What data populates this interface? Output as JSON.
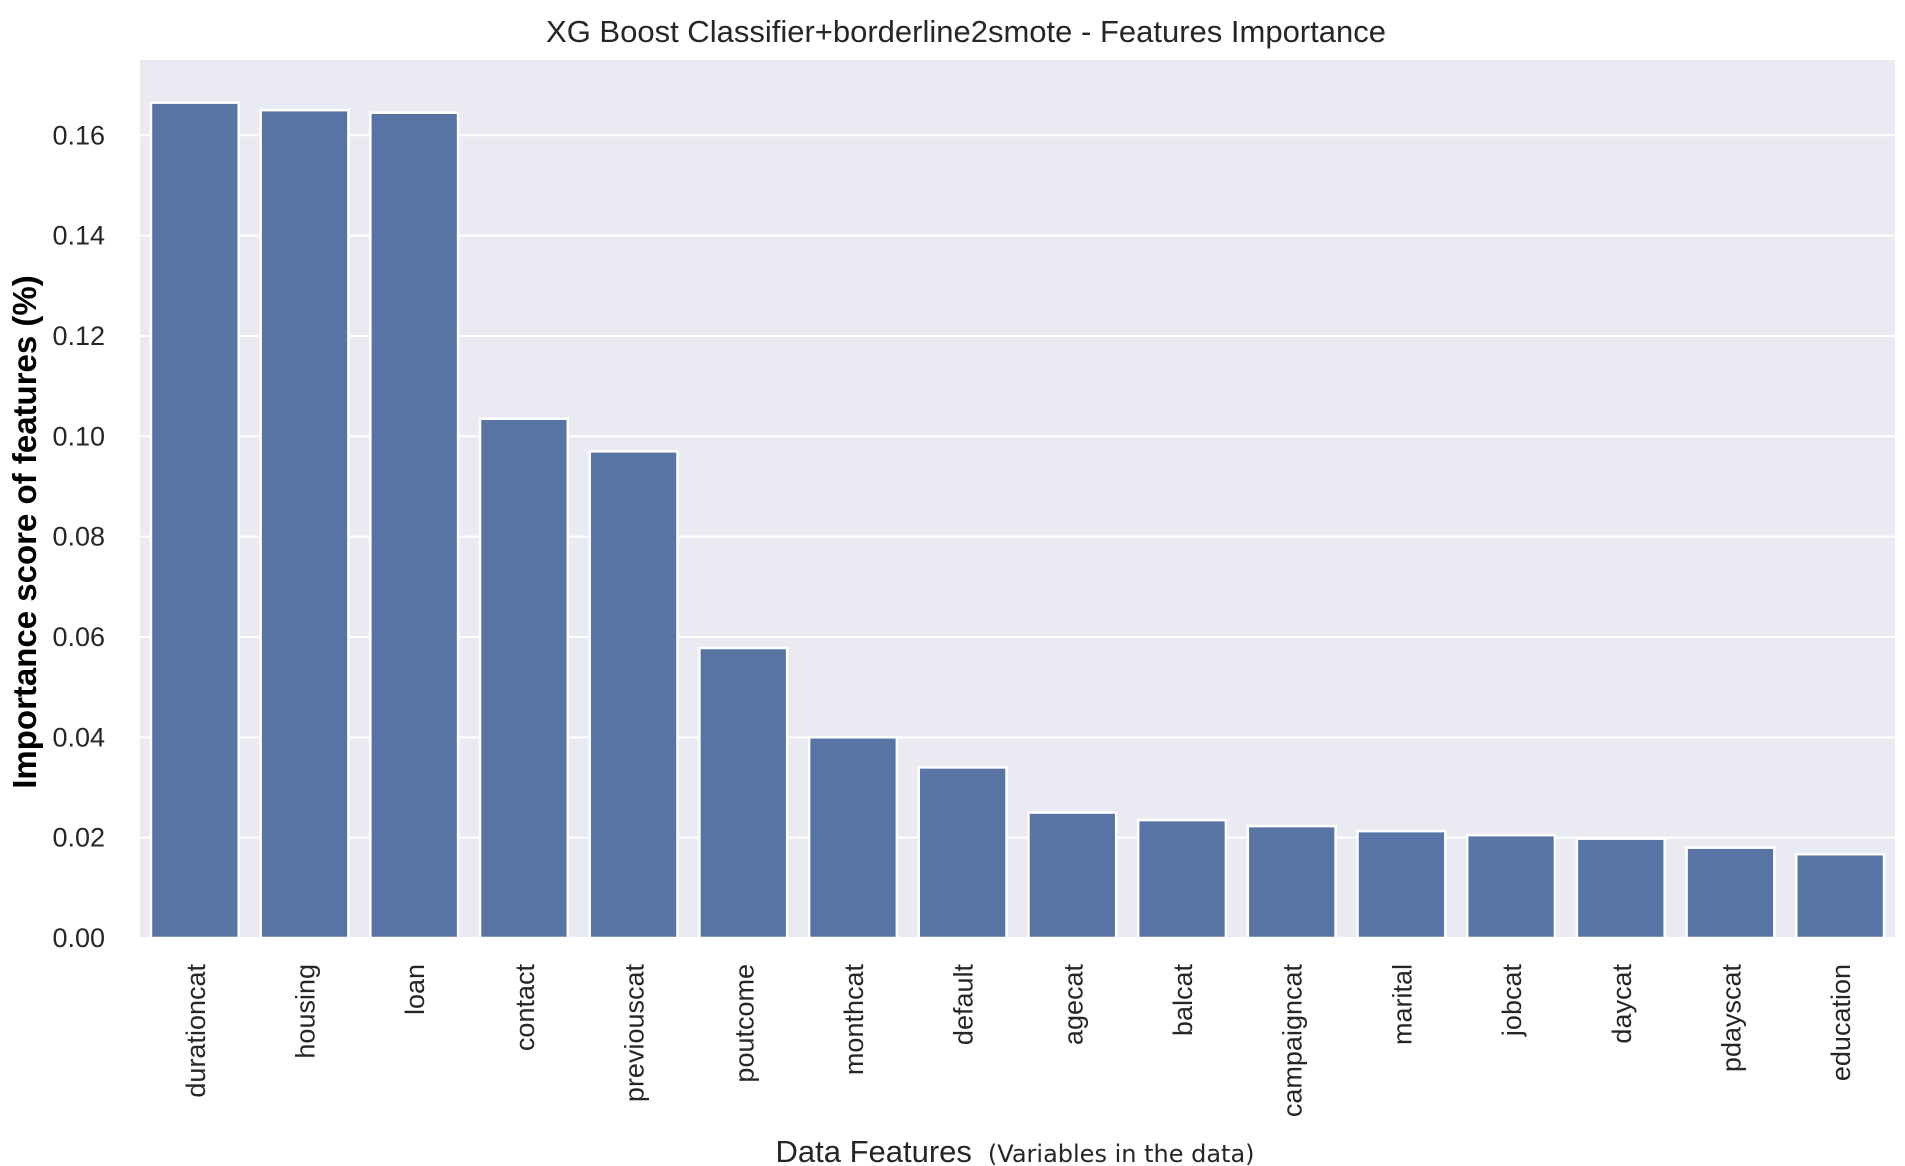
{
  "chart_data": {
    "type": "bar",
    "title": "XG Boost Classifier+borderline2smote - Features Importance",
    "xlabel": "Data Features",
    "xlabel_note": "(Variables in the data)",
    "ylabel": "Importance score of features (%)",
    "ylim": [
      0,
      0.175
    ],
    "yticks": [
      "0.00",
      "0.02",
      "0.04",
      "0.06",
      "0.08",
      "0.10",
      "0.12",
      "0.14",
      "0.16"
    ],
    "grid": true,
    "categories": [
      "durationcat",
      "housing",
      "loan",
      "contact",
      "previouscat",
      "poutcome",
      "monthcat",
      "default",
      "agecat",
      "balcat",
      "campaigncat",
      "marital",
      "jobcat",
      "daycat",
      "pdayscat",
      "education"
    ],
    "values": [
      0.1665,
      0.165,
      0.1645,
      0.1035,
      0.097,
      0.0578,
      0.04,
      0.034,
      0.025,
      0.0235,
      0.0223,
      0.0213,
      0.0205,
      0.0198,
      0.018,
      0.0167
    ],
    "colors": {
      "bar": "#5874a4",
      "plot_background": "#eaeaf2",
      "grid": "#ffffff"
    }
  }
}
